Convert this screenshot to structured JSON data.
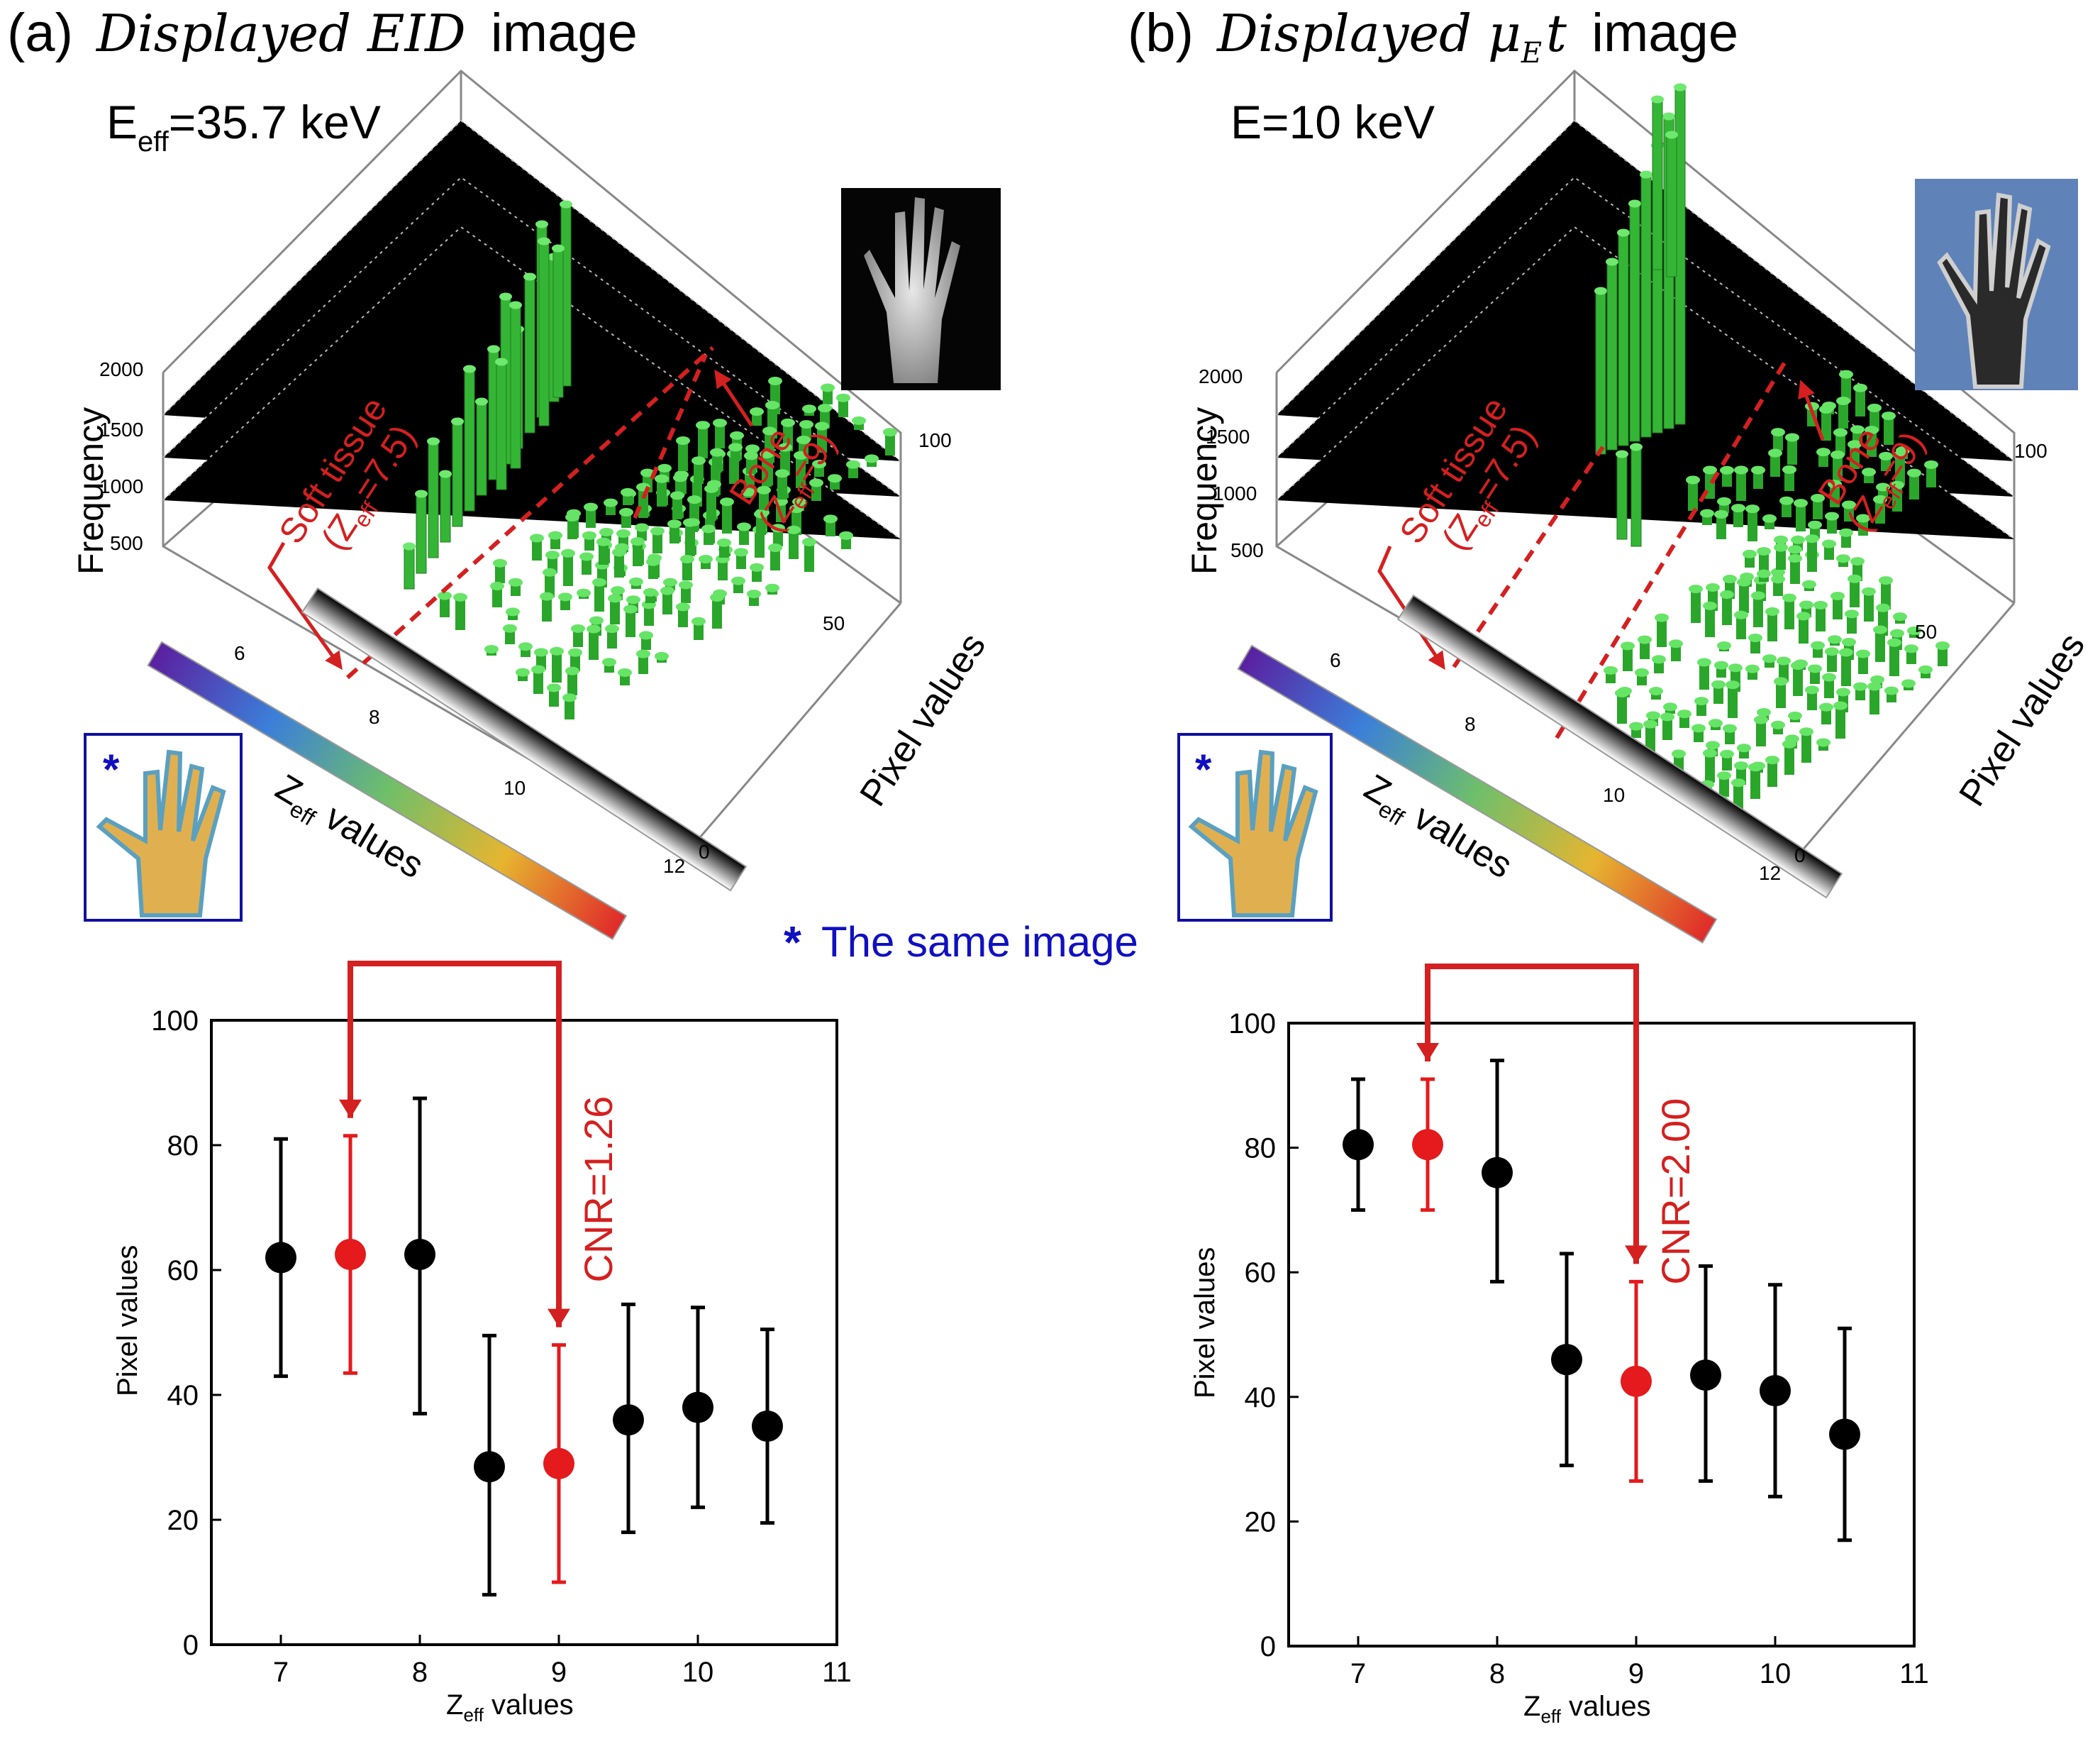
{
  "panels": [
    {
      "prefix": "(a)",
      "title_math": "Displayed EID",
      "title_suffix": "image",
      "energy_main": "E",
      "energy_sub": "eff",
      "energy_rest": "=35.7 keV",
      "soft_tissue_line1": "Soft tissue",
      "soft_tissue_line2_a": "(Z",
      "soft_tissue_line2_sub": "eff",
      "soft_tissue_line2_b": "=7.5)",
      "bone_line1": "Bone",
      "bone_line2_a": "(Z",
      "bone_line2_sub": "eff",
      "bone_line2_b": "=9)",
      "frequency_label": "Frequency",
      "pixel_values_label": "Pixel values",
      "zeff_label_main": "Z",
      "zeff_label_sub": "eff",
      "zeff_label_rest": " values",
      "freq_ticks": [
        "2000",
        "1500",
        "1000",
        "500"
      ],
      "z_ticks": [
        "6",
        "8",
        "10",
        "12"
      ],
      "pix_ticks": [
        "100",
        "50",
        "0"
      ],
      "inset_star": "*",
      "cnr_label": "CNR=1.26"
    },
    {
      "prefix": "(b)",
      "title_math": "Displayed μ",
      "title_math_sub": "E",
      "title_math_t": "t",
      "title_suffix": "image",
      "energy_main": "E=10 keV",
      "soft_tissue_line1": "Soft tissue",
      "soft_tissue_line2_a": "(Z",
      "soft_tissue_line2_sub": "eff",
      "soft_tissue_line2_b": "=7.5)",
      "bone_line1": "Bone",
      "bone_line2_a": "(Z",
      "bone_line2_sub": "eff",
      "bone_line2_b": "=9)",
      "frequency_label": "Frequency",
      "pixel_values_label": "Pixel values",
      "zeff_label_main": "Z",
      "zeff_label_sub": "eff",
      "zeff_label_rest": " values",
      "freq_ticks": [
        "2000",
        "1500",
        "1000",
        "500"
      ],
      "z_ticks": [
        "6",
        "8",
        "10",
        "12"
      ],
      "pix_ticks": [
        "100",
        "50",
        "0"
      ],
      "inset_star": "*",
      "cnr_label": "CNR=2.00"
    }
  ],
  "same_image_note": {
    "star": "*",
    "text": "The same image"
  },
  "colors": {
    "highlight": "#e41a1c",
    "points": "#000000",
    "bars": "#2db82d",
    "note": "#1010c0",
    "annotation": "#d42020"
  },
  "chart_data": [
    {
      "type": "scatter",
      "xlabel": "Z_eff values",
      "ylabel": "Pixel values",
      "xlim": [
        6.5,
        11
      ],
      "ylim": [
        0,
        100
      ],
      "xticks": [
        "7",
        "8",
        "9",
        "10",
        "11"
      ],
      "yticks": [
        "0",
        "20",
        "40",
        "60",
        "80",
        "100"
      ],
      "points": [
        {
          "x": 7.0,
          "y": 62,
          "err_low": 43,
          "err_high": 81,
          "highlight": false
        },
        {
          "x": 7.5,
          "y": 62.5,
          "err_low": 43.5,
          "err_high": 81.5,
          "highlight": true
        },
        {
          "x": 8.0,
          "y": 62.5,
          "err_low": 37,
          "err_high": 87.5,
          "highlight": false
        },
        {
          "x": 8.5,
          "y": 28.5,
          "err_low": 8,
          "err_high": 49.5,
          "highlight": false
        },
        {
          "x": 9.0,
          "y": 29,
          "err_low": 10,
          "err_high": 48,
          "highlight": true
        },
        {
          "x": 9.5,
          "y": 36,
          "err_low": 18,
          "err_high": 54.5,
          "highlight": false
        },
        {
          "x": 10.0,
          "y": 38,
          "err_low": 22,
          "err_high": 54,
          "highlight": false
        },
        {
          "x": 10.5,
          "y": 35,
          "err_low": 19.5,
          "err_high": 50.5,
          "highlight": false
        }
      ],
      "annotation": "CNR=1.26"
    },
    {
      "type": "scatter",
      "xlabel": "Z_eff values",
      "ylabel": "Pixel values",
      "xlim": [
        6.5,
        11
      ],
      "ylim": [
        0,
        100
      ],
      "xticks": [
        "7",
        "8",
        "9",
        "10",
        "11"
      ],
      "yticks": [
        "0",
        "20",
        "40",
        "60",
        "80",
        "100"
      ],
      "points": [
        {
          "x": 7.0,
          "y": 80.5,
          "err_low": 70,
          "err_high": 91,
          "highlight": false
        },
        {
          "x": 7.5,
          "y": 80.5,
          "err_low": 70,
          "err_high": 91,
          "highlight": true
        },
        {
          "x": 8.0,
          "y": 76,
          "err_low": 58.5,
          "err_high": 94,
          "highlight": false
        },
        {
          "x": 8.5,
          "y": 46,
          "err_low": 29,
          "err_high": 63,
          "highlight": false
        },
        {
          "x": 9.0,
          "y": 42.5,
          "err_low": 26.5,
          "err_high": 58.5,
          "highlight": true
        },
        {
          "x": 9.5,
          "y": 43.5,
          "err_low": 26.5,
          "err_high": 61,
          "highlight": false
        },
        {
          "x": 10.0,
          "y": 41,
          "err_low": 24,
          "err_high": 58,
          "highlight": false
        },
        {
          "x": 10.5,
          "y": 34,
          "err_low": 17,
          "err_high": 51,
          "highlight": false
        }
      ],
      "annotation": "CNR=2.00"
    }
  ]
}
